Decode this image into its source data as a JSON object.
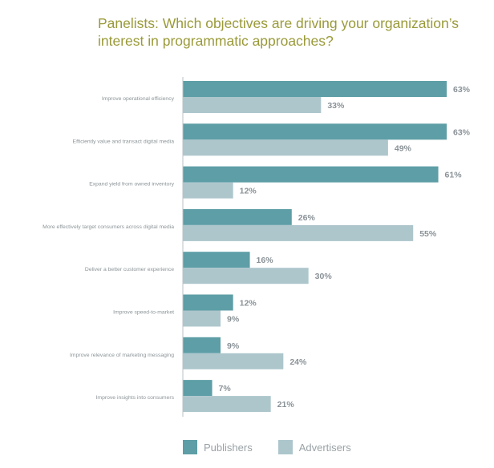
{
  "chart_data": {
    "type": "bar",
    "orientation": "horizontal",
    "title": "Panelists: Which objectives are driving your organization’s interest in programmatic approaches?",
    "categories": [
      "Improve operational efficiency",
      "Efficiently value and transact digital media",
      "Expand yield from owned inventory",
      "More effectively target consumers across digital media",
      "Deliver a better customer experience",
      "Improve speed-to-market",
      "Improve relevance of marketing messaging",
      "Improve insights into consumers"
    ],
    "series": [
      {
        "name": "Publishers",
        "color": "#5e9ea6",
        "values": [
          63,
          63,
          61,
          26,
          16,
          12,
          9,
          7
        ]
      },
      {
        "name": "Advertisers",
        "color": "#adc6cc",
        "values": [
          33,
          49,
          12,
          55,
          30,
          9,
          24,
          21
        ]
      }
    ],
    "value_suffix": "%",
    "xlim": [
      0,
      63
    ],
    "grid": false,
    "legend_position": "bottom"
  }
}
